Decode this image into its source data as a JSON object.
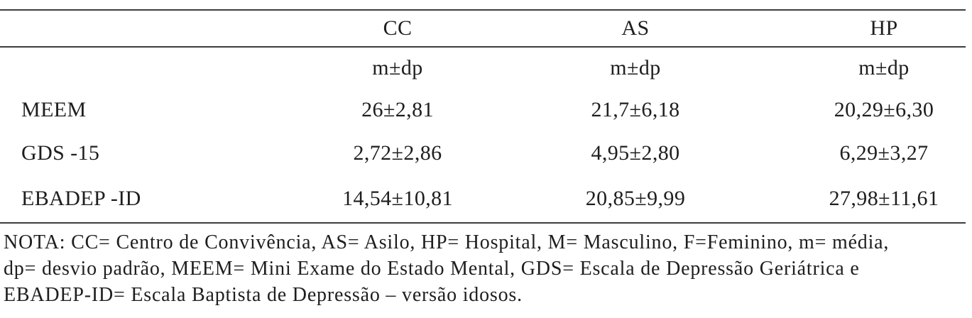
{
  "table": {
    "columns": [
      "CC",
      "AS",
      "HP"
    ],
    "subheaders": [
      "m±dp",
      "m±dp",
      "m±dp"
    ],
    "rows": [
      {
        "label": "MEEM",
        "values": [
          "26±2,81",
          "21,7±6,18",
          "20,29±6,30"
        ]
      },
      {
        "label": "GDS -15",
        "values": [
          "2,72±2,86",
          "4,95±2,80",
          "6,29±3,27"
        ]
      },
      {
        "label": "EBADEP -ID",
        "values": [
          "14,54±10,81",
          "20,85±9,99",
          "27,98±11,61"
        ]
      }
    ]
  },
  "note": {
    "lines": [
      "NOTA: CC= Centro de Convivência, AS= Asilo, HP= Hospital, M= Masculino, F=Feminino, m= média,",
      "dp= desvio padrão, MEEM= Mini Exame do Estado Mental, GDS= Escala de Depressão Geriátrica e",
      "EBADEP-ID= Escala Baptista de Depressão – versão idosos."
    ]
  },
  "colors": {
    "text": "#1e1e1e",
    "rule": "#3d3d3d",
    "background": "#ffffff"
  }
}
